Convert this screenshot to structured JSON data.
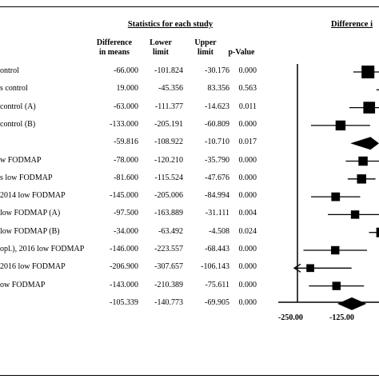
{
  "header": {
    "stats_title": "Statistics for each study",
    "diff_title": "Difference i"
  },
  "columns": {
    "diff": [
      "Difference",
      "in means"
    ],
    "lower": [
      "Lower",
      "limit"
    ],
    "upper": [
      "Upper",
      "limit"
    ],
    "p": "p-Value"
  },
  "rows": [
    {
      "study": "ontrol",
      "diff": "-66.000",
      "lower": "-101.824",
      "upper": "-30.176",
      "p": "0.000"
    },
    {
      "study": "s control",
      "diff": "19.000",
      "lower": "-45.356",
      "upper": "83.356",
      "p": "0.563"
    },
    {
      "study": "control (A)",
      "diff": "-63.000",
      "lower": "-111.377",
      "upper": "-14.623",
      "p": "0.011"
    },
    {
      "study": "control (B)",
      "diff": "-133.000",
      "lower": "-205.191",
      "upper": "-60.809",
      "p": "0.000"
    },
    {
      "study": "",
      "diff": "-59.816",
      "lower": "-108.922",
      "upper": "-10.710",
      "p": "0.017"
    },
    {
      "study": "w FODMAP",
      "diff": "-78.000",
      "lower": "-120.210",
      "upper": "-35.790",
      "p": "0.000"
    },
    {
      "study": "s low FODMAP",
      "diff": "-81.600",
      "lower": "-115.524",
      "upper": "-47.676",
      "p": "0.000"
    },
    {
      "study": "2014 low FODMAP",
      "diff": "-145.000",
      "lower": "-205.006",
      "upper": "-84.994",
      "p": "0.000"
    },
    {
      "study": "low FODMAP (A)",
      "diff": "-97.500",
      "lower": "-163.889",
      "upper": "-31.111",
      "p": "0.004"
    },
    {
      "study": "low FODMAP (B)",
      "diff": "-34.000",
      "lower": "-63.492",
      "upper": "-4.508",
      "p": "0.024"
    },
    {
      "study": "opl.), 2016 low FODMAP",
      "diff": "-146.000",
      "lower": "-223.557",
      "upper": "-68.443",
      "p": "0.000"
    },
    {
      "study": "2016 low FODMAP",
      "diff": "-206.900",
      "lower": "-307.657",
      "upper": "-106.143",
      "p": "0.000"
    },
    {
      "study": "ow FODMAP",
      "diff": "-143.000",
      "lower": "-210.389",
      "upper": "-75.611",
      "p": "0.000"
    },
    {
      "study": "",
      "diff": "-105.339",
      "lower": "-140.773",
      "upper": "-69.905",
      "p": "0.000"
    }
  ],
  "chart_data": {
    "type": "forest",
    "xaxis_ticks": [
      "-250.00",
      "-125.00"
    ],
    "xlim": [
      -250,
      -125
    ],
    "reference_line": 0,
    "points": [
      {
        "kind": "study",
        "mean": -66.0,
        "lower": -101.824,
        "upper": -30.176,
        "weight": 1.0
      },
      {
        "kind": "study",
        "mean": 19.0,
        "lower": -45.356,
        "upper": 83.356,
        "weight": 0.3
      },
      {
        "kind": "study",
        "mean": -63.0,
        "lower": -111.377,
        "upper": -14.623,
        "weight": 0.85
      },
      {
        "kind": "study",
        "mean": -133.0,
        "lower": -205.191,
        "upper": -60.809,
        "weight": 0.6
      },
      {
        "kind": "summary",
        "mean": -59.816,
        "lower": -108.922,
        "upper": -10.71
      },
      {
        "kind": "study",
        "mean": -78.0,
        "lower": -120.21,
        "upper": -35.79,
        "weight": 0.5
      },
      {
        "kind": "study",
        "mean": -81.6,
        "lower": -115.524,
        "upper": -47.676,
        "weight": 0.5
      },
      {
        "kind": "study",
        "mean": -145.0,
        "lower": -205.006,
        "upper": -84.994,
        "weight": 0.42
      },
      {
        "kind": "study",
        "mean": -97.5,
        "lower": -163.889,
        "upper": -31.111,
        "weight": 0.38
      },
      {
        "kind": "study",
        "mean": -34.0,
        "lower": -63.492,
        "upper": -4.508,
        "weight": 0.55
      },
      {
        "kind": "study",
        "mean": -146.0,
        "lower": -223.557,
        "upper": -68.443,
        "weight": 0.38
      },
      {
        "kind": "study",
        "mean": -206.9,
        "lower": -307.657,
        "upper": -106.143,
        "weight": 0.3,
        "arrow_left": true
      },
      {
        "kind": "study",
        "mean": -143.0,
        "lower": -210.389,
        "upper": -75.611,
        "weight": 0.38
      },
      {
        "kind": "summary",
        "mean": -105.339,
        "lower": -140.773,
        "upper": -69.905
      }
    ]
  }
}
